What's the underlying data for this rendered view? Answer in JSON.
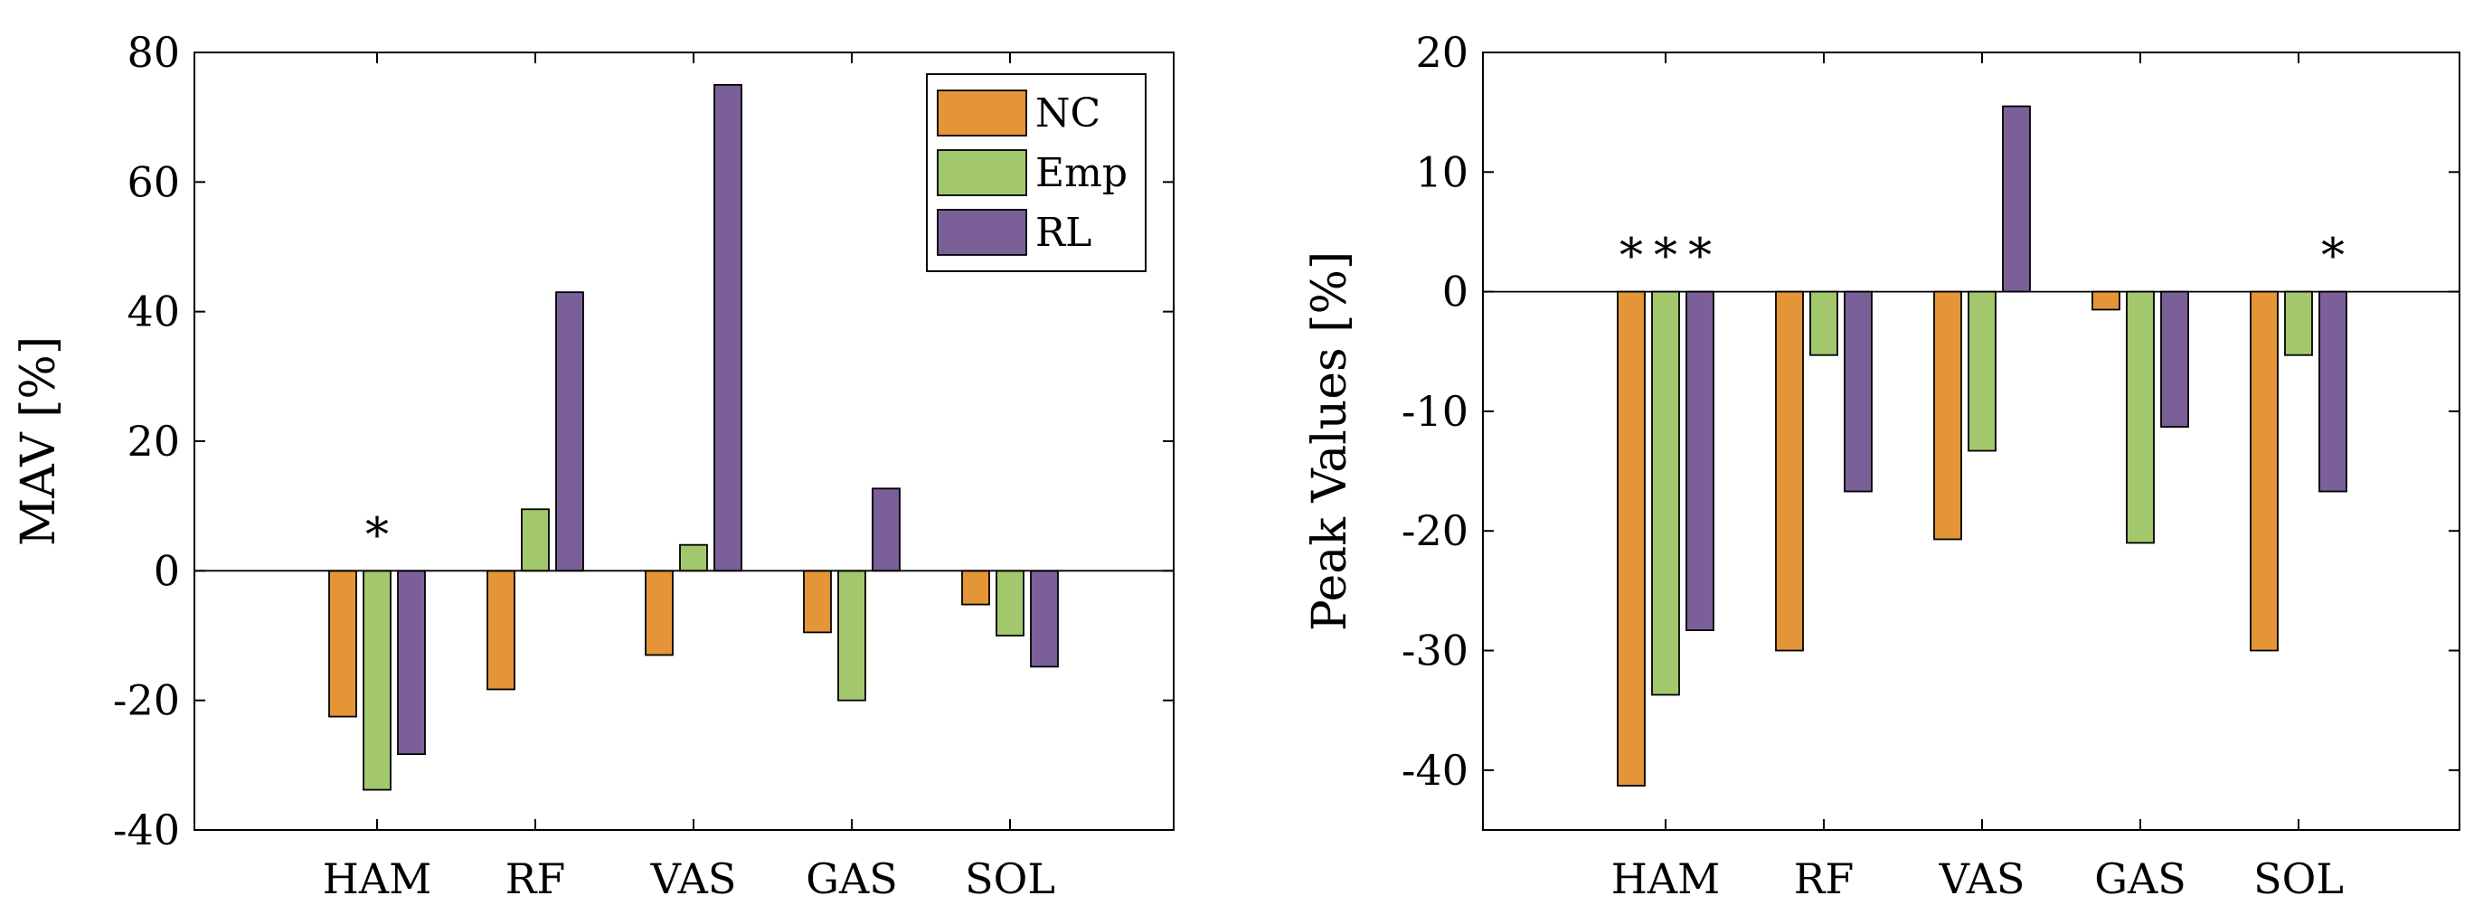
{
  "chart_data": [
    {
      "type": "bar",
      "categories": [
        "HAM",
        "RF",
        "VAS",
        "GAS",
        "SOL"
      ],
      "ylabel": "MAV [%]",
      "ylim": [
        -40,
        80
      ],
      "yticks": [
        80,
        60,
        40,
        20,
        0,
        -20,
        -40
      ],
      "ytick_labels": [
        "80",
        "60",
        "40",
        "20",
        "0",
        "-20",
        "-40"
      ],
      "grid": false,
      "legend": {
        "placement": "top-right",
        "entries": [
          "NC",
          "Emp",
          "RL"
        ]
      },
      "series": [
        {
          "name": "NC",
          "color": "#e39537",
          "values": [
            -22.5,
            -18.3,
            -13.0,
            -9.5,
            -5.2
          ]
        },
        {
          "name": "Emp",
          "color": "#a3c76c",
          "values": [
            -33.8,
            9.5,
            4.0,
            -20.0,
            -10.0
          ]
        },
        {
          "name": "RL",
          "color": "#7a5f98",
          "values": [
            -28.3,
            43.0,
            75.0,
            12.7,
            -14.8
          ]
        }
      ],
      "annotations": [
        {
          "category": "HAM",
          "series": "Emp",
          "text": "*"
        }
      ]
    },
    {
      "type": "bar",
      "categories": [
        "HAM",
        "RF",
        "VAS",
        "GAS",
        "SOL"
      ],
      "ylabel": "Peak Values [%]",
      "ylim": [
        -45,
        20
      ],
      "yticks": [
        20,
        10,
        0,
        -10,
        -20,
        -30,
        -40
      ],
      "ytick_labels": [
        "20",
        "10",
        "0",
        "-10",
        "-20",
        "-30",
        "-40"
      ],
      "grid": false,
      "series": [
        {
          "name": "NC",
          "color": "#e39537",
          "values": [
            -41.3,
            -30.0,
            -20.7,
            -1.5,
            -30.0
          ]
        },
        {
          "name": "Emp",
          "color": "#a3c76c",
          "values": [
            -33.7,
            -5.3,
            -13.3,
            -21.0,
            -5.3
          ]
        },
        {
          "name": "RL",
          "color": "#7a5f98",
          "values": [
            -28.3,
            -16.7,
            15.5,
            -11.3,
            -16.7
          ]
        }
      ],
      "annotations": [
        {
          "category": "HAM",
          "series": "NC",
          "text": "*"
        },
        {
          "category": "HAM",
          "series": "Emp",
          "text": "*"
        },
        {
          "category": "HAM",
          "series": "RL",
          "text": "*"
        },
        {
          "category": "SOL",
          "series": "RL",
          "text": "*"
        }
      ]
    }
  ]
}
